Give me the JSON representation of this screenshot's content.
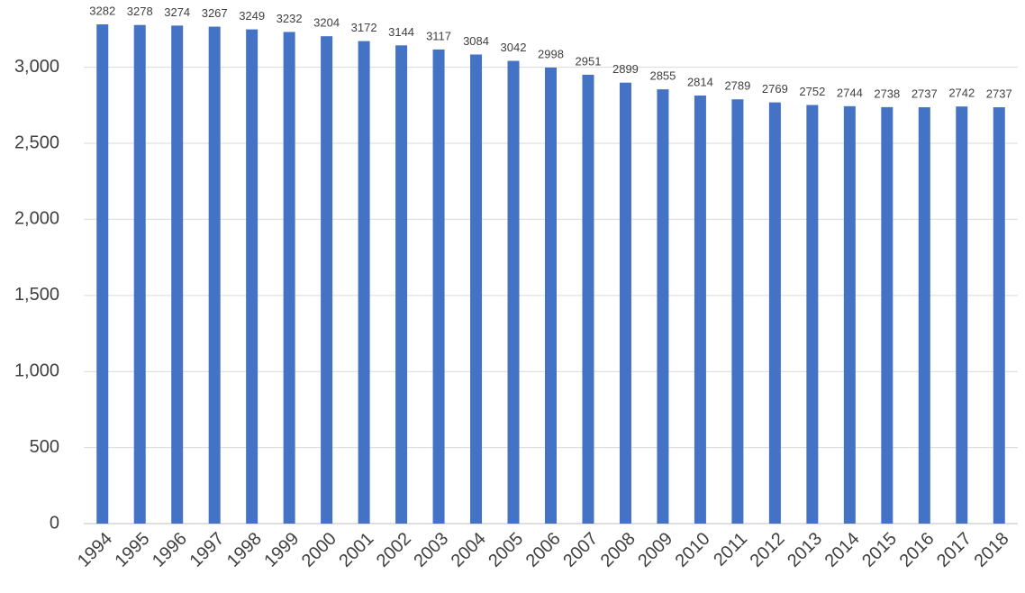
{
  "chart_data": {
    "type": "bar",
    "categories": [
      "1994",
      "1995",
      "1996",
      "1997",
      "1998",
      "1999",
      "2000",
      "2001",
      "2002",
      "2003",
      "2004",
      "2005",
      "2006",
      "2007",
      "2008",
      "2009",
      "2010",
      "2011",
      "2012",
      "2013",
      "2014",
      "2015",
      "2016",
      "2017",
      "2018"
    ],
    "values": [
      3282,
      3278,
      3274,
      3267,
      3249,
      3232,
      3204,
      3172,
      3144,
      3117,
      3084,
      3042,
      2998,
      2951,
      2899,
      2855,
      2814,
      2789,
      2769,
      2752,
      2744,
      2738,
      2737,
      2742,
      2737
    ],
    "color": "#4472c4",
    "ylim": [
      0,
      3300
    ],
    "yticks": [
      0,
      500,
      {
        "value": 1000,
        "label": "1,000"
      },
      {
        "value": 1500,
        "label": "1,500"
      },
      {
        "value": 2000,
        "label": "2,000"
      },
      {
        "value": 2500,
        "label": "2,500"
      },
      {
        "value": 3000,
        "label": "3,000"
      }
    ],
    "grid": true
  }
}
